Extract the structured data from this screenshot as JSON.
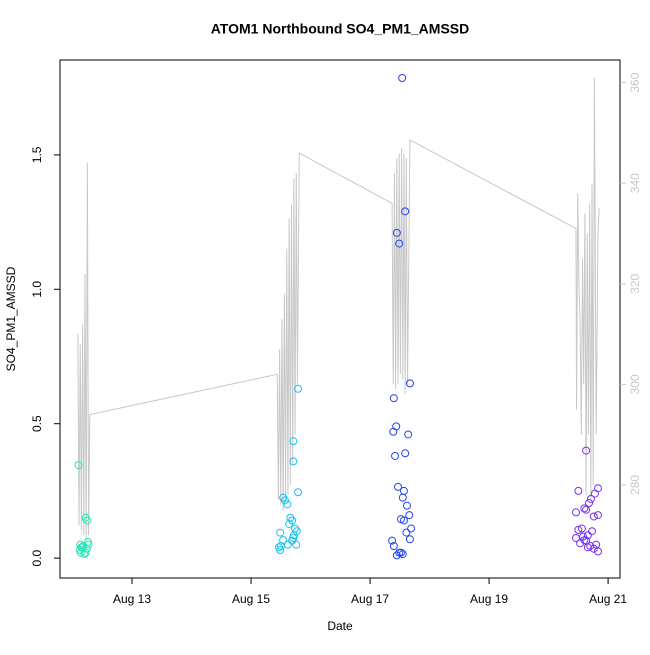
{
  "chart_data": {
    "type": "scatter",
    "title": "ATOM1 Northbound SO4_PM1_AMSSD",
    "x_label": "Date",
    "y_label": "SO4_PM1_AMSSD",
    "xlim": [
      11.79,
      21.2
    ],
    "xticks": [
      {
        "value": 13,
        "label": "Aug 13"
      },
      {
        "value": 15,
        "label": "Aug 15"
      },
      {
        "value": 17,
        "label": "Aug 17"
      },
      {
        "value": 19,
        "label": "Aug 19"
      },
      {
        "value": 21,
        "label": "Aug 21"
      }
    ],
    "ylim": [
      -0.074,
      1.853
    ],
    "yticks": [
      {
        "value": 0,
        "label": "0.0"
      },
      0.5,
      {
        "value": 1,
        "label": "1.0"
      },
      1.5
    ],
    "y2lim": [
      261.5,
      364.5
    ],
    "y2ticks": [
      280,
      300,
      320,
      340,
      360
    ],
    "y2_color": "#c8c8c8",
    "groups": [
      {
        "color": "#1ee6b4",
        "x": [
          12.1,
          12.22,
          12.25,
          12.13,
          12.12,
          12.14,
          12.16,
          12.18,
          12.26,
          12.2,
          12.22,
          12.24,
          12.27,
          12.15
        ],
        "values": [
          0.346,
          0.15,
          0.14,
          0.05,
          0.03,
          0.02,
          0.04,
          0.045,
          0.06,
          0.015,
          0.02,
          0.035,
          0.05,
          0.04
        ]
      },
      {
        "color": "#14c3f0",
        "x": [
          15.79,
          15.71,
          15.71,
          15.79,
          15.54,
          15.57,
          15.61,
          15.66,
          15.69,
          15.64,
          15.74,
          15.77,
          15.72,
          15.71,
          15.69,
          15.62,
          15.5,
          15.47,
          15.49,
          15.49,
          15.54,
          15.76
        ],
        "values": [
          0.63,
          0.435,
          0.36,
          0.245,
          0.225,
          0.215,
          0.2,
          0.15,
          0.14,
          0.127,
          0.11,
          0.1,
          0.085,
          0.075,
          0.065,
          0.05,
          0.045,
          0.04,
          0.03,
          0.095,
          0.067,
          0.05
        ]
      },
      {
        "color": "#2846f0",
        "x": [
          17.54,
          17.59,
          17.45,
          17.49,
          17.67,
          17.4,
          17.44,
          17.39,
          17.64,
          17.59,
          17.42,
          17.47,
          17.57,
          17.55,
          17.62,
          17.66,
          17.52,
          17.57,
          17.69,
          17.61,
          17.67,
          17.37,
          17.4,
          17.49,
          17.55,
          17.45,
          17.52
        ],
        "values": [
          1.786,
          1.29,
          1.21,
          1.17,
          0.65,
          0.595,
          0.49,
          0.47,
          0.46,
          0.39,
          0.38,
          0.265,
          0.25,
          0.225,
          0.195,
          0.16,
          0.145,
          0.14,
          0.11,
          0.095,
          0.07,
          0.065,
          0.045,
          0.02,
          0.015,
          0.01,
          0.02
        ]
      },
      {
        "color": "#7832f0",
        "x": [
          20.63,
          20.5,
          20.83,
          20.78,
          20.71,
          20.68,
          20.6,
          20.63,
          20.46,
          20.76,
          20.83,
          20.56,
          20.5,
          20.73,
          20.66,
          20.46,
          20.6,
          20.53,
          20.8,
          20.7,
          20.66,
          20.76,
          20.83,
          20.58,
          20.63
        ],
        "values": [
          0.4,
          0.25,
          0.26,
          0.24,
          0.22,
          0.205,
          0.185,
          0.18,
          0.17,
          0.155,
          0.16,
          0.11,
          0.105,
          0.1,
          0.085,
          0.075,
          0.067,
          0.055,
          0.05,
          0.045,
          0.04,
          0.035,
          0.025,
          0.08,
          0.065
        ]
      }
    ],
    "line": {
      "color": "#c8c8c8",
      "axis": "y2",
      "x": [
        12.09,
        12.11,
        12.13,
        12.15,
        12.17,
        12.19,
        12.21,
        12.23,
        12.25,
        12.27,
        12.29,
        15.44,
        15.46,
        15.48,
        15.5,
        15.52,
        15.54,
        15.56,
        15.58,
        15.6,
        15.62,
        15.64,
        15.66,
        15.68,
        15.7,
        15.72,
        15.74,
        15.76,
        15.78,
        15.81,
        17.37,
        17.39,
        17.41,
        17.43,
        17.45,
        17.47,
        17.49,
        17.51,
        17.53,
        17.55,
        17.57,
        17.59,
        17.61,
        17.63,
        17.67,
        20.46,
        20.47,
        20.49,
        20.51,
        20.53,
        20.55,
        20.57,
        20.59,
        20.61,
        20.63,
        20.65,
        20.67,
        20.69,
        20.71,
        20.73,
        20.75,
        20.77,
        20.8,
        20.83,
        20.85
      ],
      "values": [
        310,
        272,
        308,
        271,
        312,
        270,
        322,
        269,
        344,
        270,
        294,
        302,
        277,
        307,
        276,
        313,
        275,
        318,
        277,
        327,
        278,
        333,
        280,
        336,
        284,
        341,
        290,
        342,
        300,
        346,
        336,
        300,
        342,
        299,
        345,
        300,
        346,
        302,
        347,
        301,
        346,
        298,
        345,
        300,
        348.6,
        331,
        295,
        338,
        320,
        312,
        290,
        325,
        300,
        334,
        278,
        330,
        290,
        336,
        277,
        340,
        280,
        361,
        290,
        330,
        335
      ]
    }
  }
}
